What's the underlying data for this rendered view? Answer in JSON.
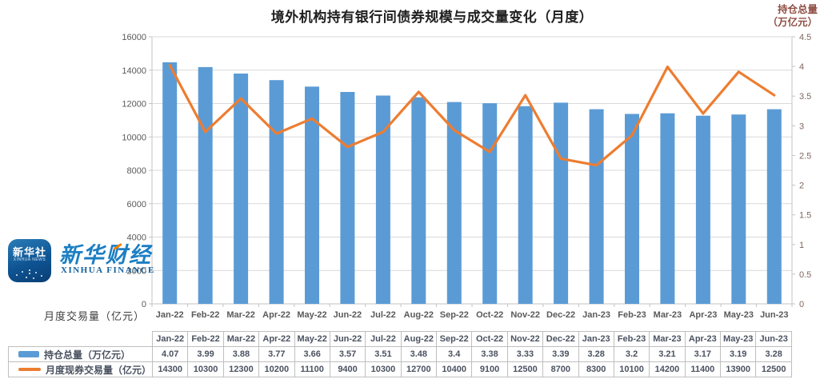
{
  "chart_data": {
    "type": "combo-bar-line",
    "title": "境外机构持有银行间债券规模与成交量变化（月度）",
    "categories": [
      "Jan-22",
      "Feb-22",
      "Mar-22",
      "Apr-22",
      "May-22",
      "Jun-22",
      "Jul-22",
      "Aug-22",
      "Sep-22",
      "Oct-22",
      "Nov-22",
      "Dec-22",
      "Jan-23",
      "Feb-23",
      "Mar-23",
      "Apr-23",
      "May-23",
      "Jun-23"
    ],
    "series": [
      {
        "name": "持仓总量（万亿元）",
        "type": "bar",
        "axis": "right",
        "color": "#5B9BD5",
        "values": [
          4.07,
          3.99,
          3.88,
          3.77,
          3.66,
          3.57,
          3.51,
          3.48,
          3.4,
          3.38,
          3.33,
          3.39,
          3.28,
          3.2,
          3.21,
          3.17,
          3.19,
          3.28
        ]
      },
      {
        "name": "月度现券交易量（亿元）",
        "type": "line",
        "axis": "left",
        "color": "#ED7D31",
        "values": [
          14300,
          10300,
          12300,
          10200,
          11100,
          9400,
          10300,
          12700,
          10400,
          9100,
          12500,
          8700,
          8300,
          10100,
          14200,
          11400,
          13900,
          12500
        ]
      }
    ],
    "left_axis": {
      "caption": "月度交易量（亿元）",
      "min": 0,
      "max": 16000,
      "step": 2000
    },
    "right_axis": {
      "title_lines": [
        "持仓总量",
        "（万亿元）"
      ],
      "min": 0,
      "max": 4.5,
      "step": 0.5
    },
    "grid": true,
    "legend_position": "table-left"
  },
  "logo": {
    "icon_title": "新华社",
    "icon_subtitle": "XINHUA NEWS",
    "brand": "新华财经",
    "brand_en": "XINHUA FINANCE"
  },
  "colors": {
    "bar": "#5B9BD5",
    "line": "#ED7D31",
    "grid": "#D9D9D9",
    "axis_line": "#C3C3C3",
    "axis_text": "#595959",
    "right_axis_text": "#7E675F",
    "axis_title_red": "#8F4E44",
    "table_text": "#4A5260",
    "table_border": "#BFBFBF",
    "title_text": "#1F1F1F"
  }
}
